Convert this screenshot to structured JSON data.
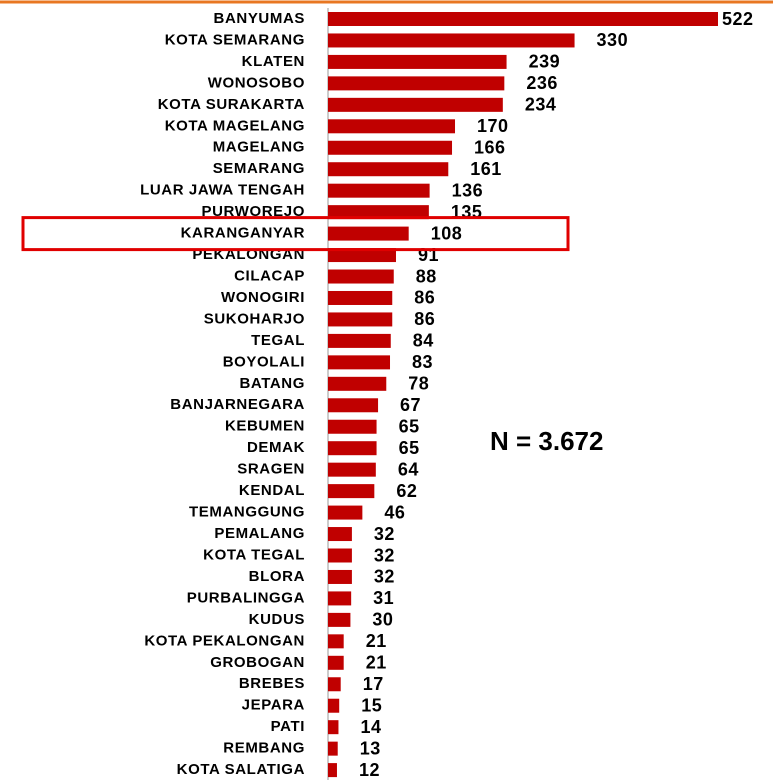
{
  "chart_data": {
    "type": "bar",
    "orientation": "horizontal",
    "categories": [
      "BANYUMAS",
      "KOTA SEMARANG",
      "KLATEN",
      "WONOSOBO",
      "KOTA SURAKARTA",
      "KOTA MAGELANG",
      "MAGELANG",
      "SEMARANG",
      "LUAR JAWA TENGAH",
      "PURWOREJO",
      "KARANGANYAR",
      "PEKALONGAN",
      "CILACAP",
      "WONOGIRI",
      "SUKOHARJO",
      "TEGAL",
      "BOYOLALI",
      "BATANG",
      "BANJARNEGARA",
      "KEBUMEN",
      "DEMAK",
      "SRAGEN",
      "KENDAL",
      "TEMANGGUNG",
      "PEMALANG",
      "KOTA TEGAL",
      "BLORA",
      "PURBALINGGA",
      "KUDUS",
      "KOTA PEKALONGAN",
      "GROBOGAN",
      "BREBES",
      "JEPARA",
      "PATI",
      "REMBANG",
      "KOTA SALATIGA"
    ],
    "values": [
      522,
      330,
      239,
      236,
      234,
      170,
      166,
      161,
      136,
      135,
      108,
      91,
      88,
      86,
      86,
      84,
      83,
      78,
      67,
      65,
      65,
      64,
      62,
      46,
      32,
      32,
      32,
      31,
      30,
      21,
      21,
      17,
      15,
      14,
      13,
      12
    ],
    "color": "#c00000",
    "xlim": [
      0,
      522
    ],
    "annotation": "N = 3.672",
    "highlight_index": 10,
    "highlight_color": "#e00000",
    "top_rule_color": "#e87722"
  }
}
